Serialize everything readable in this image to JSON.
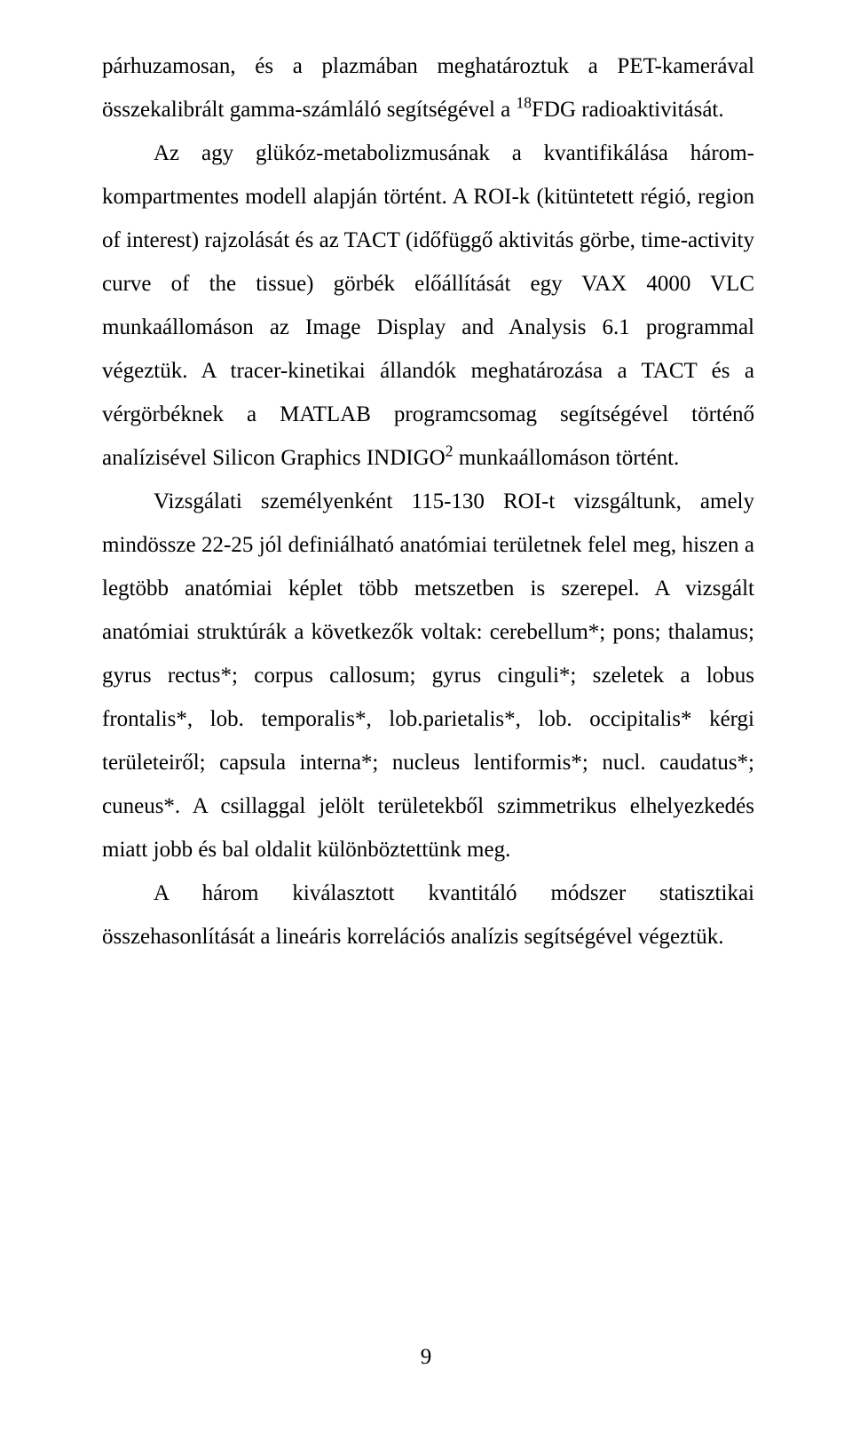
{
  "page": {
    "number": "9",
    "background": "#ffffff",
    "text_color": "#000000",
    "font_family": "Times New Roman",
    "font_size_pt": 14,
    "line_height": 1.96
  },
  "paragraphs": {
    "p1_pre": "párhuzamosan, és a plazmában meghatároztuk a PET-kamerával összekalibrált gamma-számláló segítségével a ",
    "p1_sup": "18",
    "p1_post": "FDG radioaktivitását.",
    "p2_pre": "Az agy glükóz-metabolizmusának a kvantifikálása három­kompartmentes modell alapján történt. A ROI-k (kitüntetett régió, region of interest) rajzolását és az TACT (időfüggő aktivitás görbe, time-activity curve of the tissue) görbék előállítását egy VAX 4000 VLC munkaállomáson az Image Display and Analysis 6.1 programmal végeztük. A tracer-kinetikai állandók meghatározása a TACT és a vérgörbéknek a MATLAB programcsomag segítségével történő analízisével Silicon Graphics INDIGO",
    "p2_sup": "2",
    "p2_post": " munkaállomáson történt.",
    "p3": "Vizsgálati személyenként 115-130 ROI-t vizsgáltunk, amely mindössze 22-25 jól definiálható anatómiai területnek felel meg, hiszen a legtöbb anatómiai képlet több metszetben is szerepel. A vizsgált anatómiai struktúrák a következők voltak: cerebellum*; pons; thalamus; gyrus rectus*; corpus callosum; gyrus cinguli*; szeletek a lobus frontalis*, lob. temporalis*, lob.parietalis*, lob. occipitalis* kérgi területeiről; capsula interna*; nucleus lentiformis*; nucl. caudatus*; cuneus*. A csillaggal jelölt területekből szimmetrikus elhelyezkedés miatt jobb és bal oldalit különböztettünk meg.",
    "p4": "A három kiválasztott kvantitáló módszer statisztikai összehasonlítását a lineáris korrelációs analízis segítségével végeztük."
  }
}
